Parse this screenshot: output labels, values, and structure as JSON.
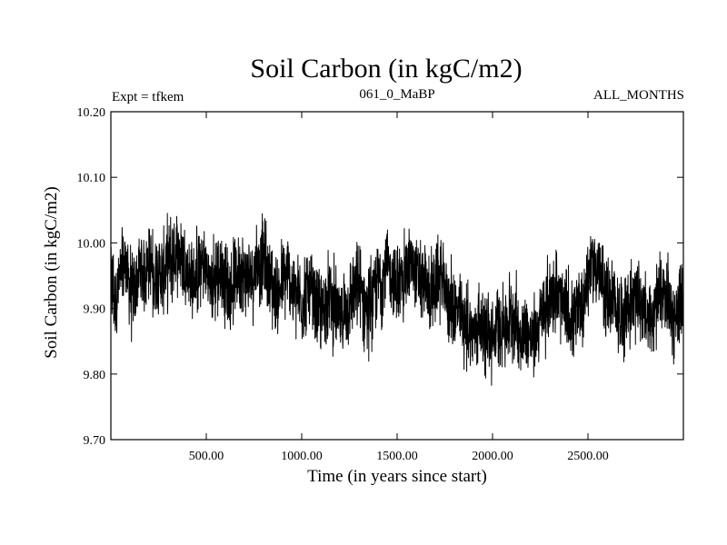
{
  "chart_data": {
    "type": "line",
    "title": "Soil Carbon (in kgC/m2)",
    "subtitle_left": "Expt = tfkem",
    "subtitle_center": "061_0_MaBP",
    "subtitle_right": "ALL_MONTHS",
    "xlabel": "Time (in years since start)",
    "ylabel": "Soil Carbon (in kgC/m2)",
    "xlim": [
      0,
      3000
    ],
    "ylim": [
      9.7,
      10.2
    ],
    "x_ticks": [
      500,
      1000,
      1500,
      2000,
      2500
    ],
    "x_tick_labels": [
      "500.00",
      "1000.00",
      "1500.00",
      "2000.00",
      "2500.00"
    ],
    "y_ticks": [
      9.7,
      9.8,
      9.9,
      10.0,
      10.1,
      10.2
    ],
    "y_tick_labels": [
      "9.70",
      "9.80",
      "9.90",
      "10.00",
      "10.10",
      "10.20"
    ],
    "grid": false,
    "line_color": "#000000",
    "series": [
      {
        "x_start": 0,
        "x_step": 25,
        "values": [
          9.94,
          9.91,
          9.95,
          9.97,
          9.93,
          9.92,
          9.96,
          9.95,
          9.98,
          9.94,
          9.96,
          9.95,
          9.97,
          9.98,
          9.99,
          9.98,
          9.96,
          9.94,
          9.95,
          9.97,
          9.96,
          9.93,
          9.95,
          9.96,
          9.94,
          9.92,
          9.95,
          9.96,
          9.95,
          9.94,
          9.96,
          9.97,
          9.98,
          9.95,
          9.93,
          9.92,
          9.94,
          9.95,
          9.93,
          9.92,
          9.91,
          9.93,
          9.92,
          9.9,
          9.89,
          9.91,
          9.92,
          9.9,
          9.88,
          9.9,
          9.91,
          9.92,
          9.93,
          9.91,
          9.9,
          9.92,
          9.94,
          9.95,
          9.96,
          9.95,
          9.93,
          9.94,
          9.96,
          9.97,
          9.95,
          9.94,
          9.93,
          9.92,
          9.94,
          9.95,
          9.93,
          9.91,
          9.9,
          9.89,
          9.88,
          9.87,
          9.86,
          9.88,
          9.87,
          9.86,
          9.85,
          9.87,
          9.88,
          9.87,
          9.89,
          9.88,
          9.86,
          9.87,
          9.85,
          9.86,
          9.88,
          9.9,
          9.92,
          9.93,
          9.91,
          9.9,
          9.89,
          9.88,
          9.9,
          9.91,
          9.95,
          9.97,
          9.96,
          9.94,
          9.92,
          9.91,
          9.9,
          9.89,
          9.9,
          9.91,
          9.92,
          9.91,
          9.89,
          9.88,
          9.9,
          9.91,
          9.92,
          9.9,
          9.89,
          9.9,
          9.91
        ]
      }
    ]
  }
}
